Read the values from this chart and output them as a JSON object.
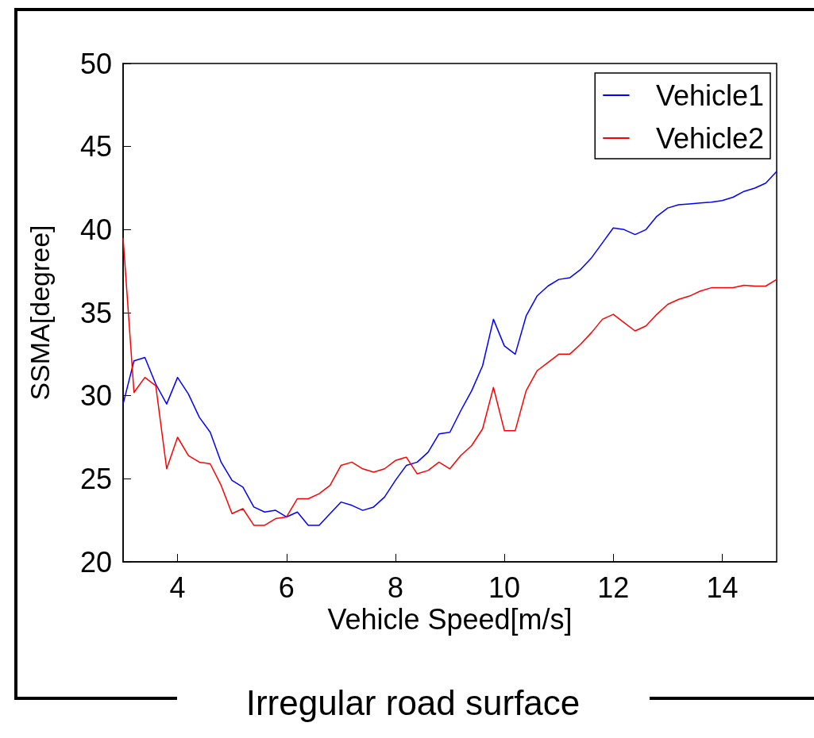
{
  "chart_data": {
    "type": "line",
    "xlabel": "Vehicle Speed[m/s]",
    "ylabel": "SSMA[degree]",
    "annotations": [
      "Irregular road surface"
    ],
    "x": [
      3.0,
      3.2,
      3.4,
      3.6,
      3.8,
      4.0,
      4.2,
      4.4,
      4.6,
      4.8,
      5.0,
      5.2,
      5.4,
      5.6,
      5.8,
      6.0,
      6.2,
      6.4,
      6.6,
      6.8,
      7.0,
      7.2,
      7.4,
      7.6,
      7.8,
      8.0,
      8.2,
      8.4,
      8.6,
      8.8,
      9.0,
      9.2,
      9.4,
      9.6,
      9.8,
      10.0,
      10.2,
      10.4,
      10.6,
      10.8,
      11.0,
      11.2,
      11.4,
      11.6,
      11.8,
      12.0,
      12.2,
      12.4,
      12.6,
      12.8,
      13.0,
      13.2,
      13.4,
      13.6,
      13.8,
      14.0,
      14.2,
      14.4,
      14.6,
      14.8,
      15.0
    ],
    "series": [
      {
        "name": "Vehicle1",
        "color": "#0000ff",
        "values": [
          29.5,
          32.1,
          32.3,
          30.7,
          29.5,
          31.1,
          30.1,
          28.7,
          27.8,
          26.0,
          24.9,
          24.5,
          23.3,
          23.0,
          23.1,
          22.7,
          23.0,
          22.2,
          22.2,
          22.9,
          23.6,
          23.4,
          23.1,
          23.3,
          23.9,
          24.9,
          25.8,
          26.0,
          26.6,
          27.7,
          27.8,
          29.1,
          30.3,
          31.8,
          34.6,
          33.0,
          32.5,
          34.8,
          36.0,
          36.6,
          37.0,
          37.1,
          37.6,
          38.3,
          39.2,
          40.1,
          40.0,
          39.7,
          40.0,
          40.8,
          41.3,
          41.5,
          41.55,
          41.6,
          41.65,
          41.75,
          41.95,
          42.3,
          42.5,
          42.8,
          43.5
        ]
      },
      {
        "name": "Vehicle2",
        "color": "#ff0000",
        "values": [
          39.5,
          30.2,
          31.1,
          30.6,
          25.6,
          27.5,
          26.4,
          26.0,
          25.9,
          24.6,
          22.9,
          23.2,
          22.2,
          22.2,
          22.6,
          22.7,
          23.8,
          23.8,
          24.1,
          24.6,
          25.8,
          26.0,
          25.6,
          25.4,
          25.6,
          26.1,
          26.3,
          25.3,
          25.5,
          26.0,
          25.6,
          26.4,
          27.0,
          28.0,
          30.5,
          27.9,
          27.9,
          30.3,
          31.5,
          32.0,
          32.5,
          32.5,
          33.1,
          33.8,
          34.6,
          34.9,
          34.4,
          33.9,
          34.2,
          34.9,
          35.5,
          35.8,
          36.0,
          36.3,
          36.5,
          36.5,
          36.5,
          36.65,
          36.6,
          36.6,
          37.0
        ]
      }
    ],
    "xlim": [
      3,
      15
    ],
    "xticks": [
      4,
      6,
      8,
      10,
      12,
      14
    ],
    "ylim": [
      20,
      50
    ],
    "yticks": [
      20,
      25,
      30,
      35,
      40,
      45,
      50
    ],
    "grid": false,
    "legend": "top right",
    "marker": "none",
    "line_style": "solid"
  }
}
